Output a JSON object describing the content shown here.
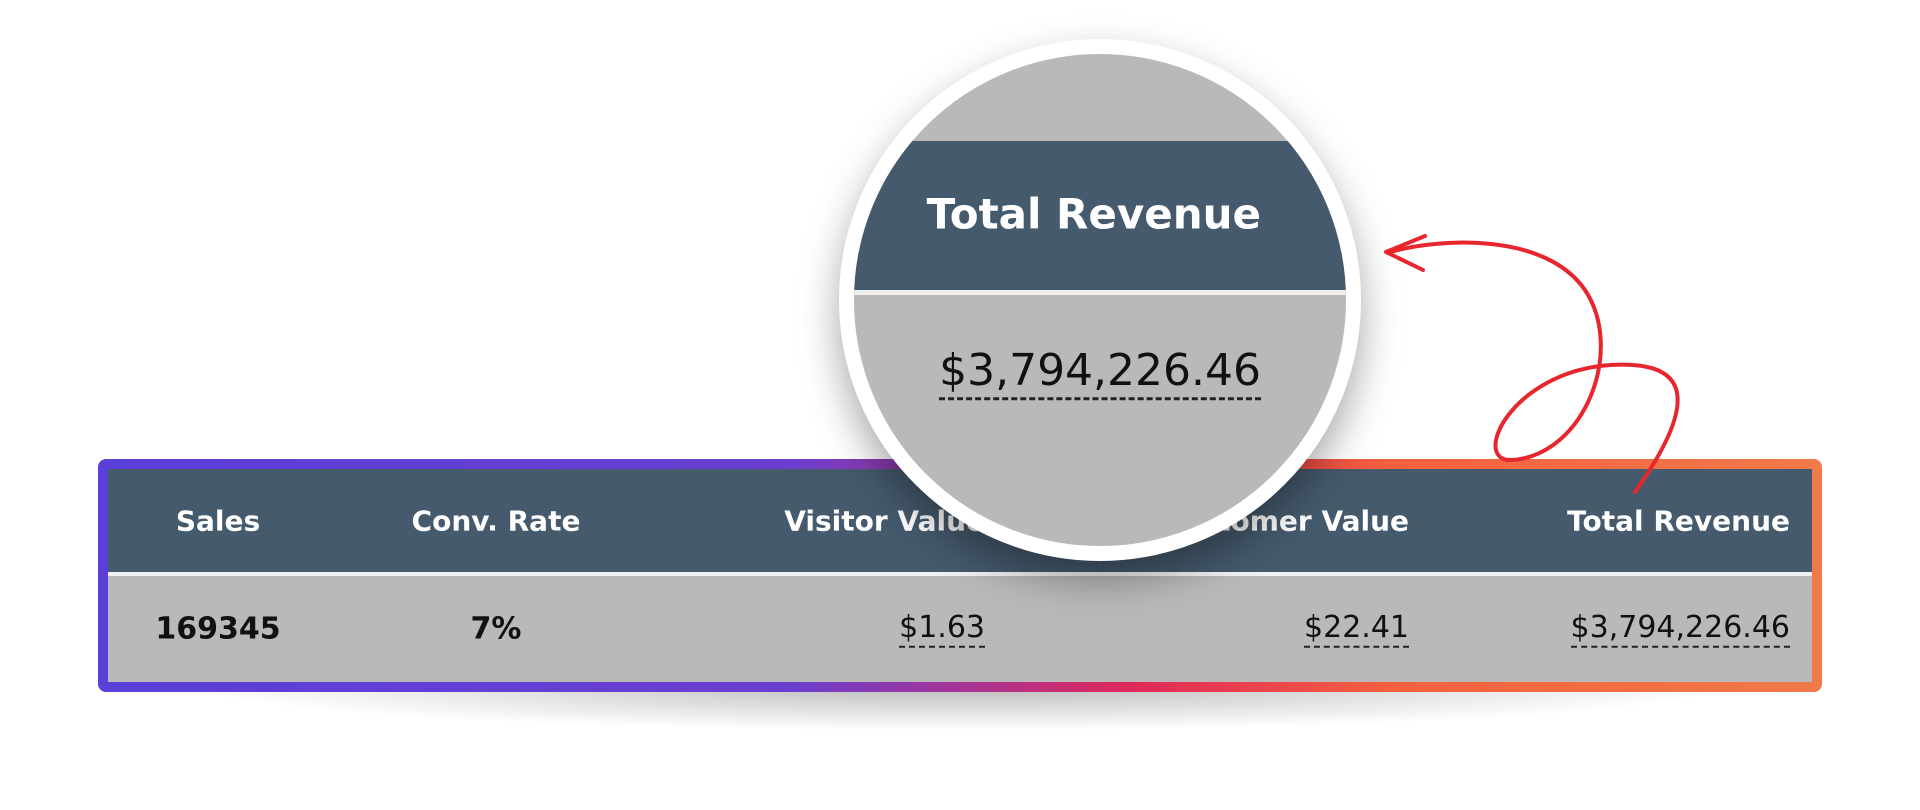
{
  "table": {
    "headers": [
      "Sales",
      "Conv. Rate",
      "Visitor Value",
      "Customer Value",
      "Total Revenue"
    ],
    "rows": [
      [
        "169345",
        "7%",
        "$1.63",
        "$22.41",
        "$3,794,226.46"
      ]
    ]
  },
  "magnifier": {
    "header": "Total Revenue",
    "value": "$3,794,226.46"
  }
}
